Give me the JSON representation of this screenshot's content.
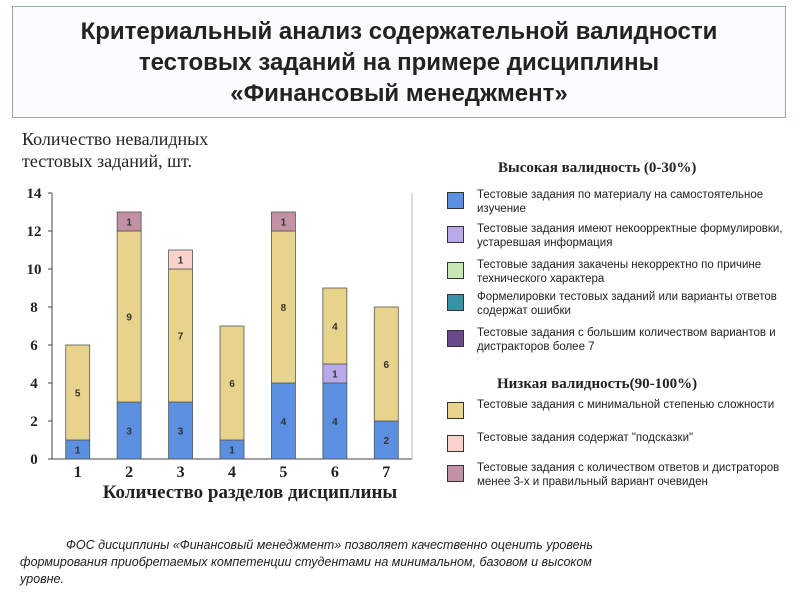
{
  "title": {
    "line1": "Критериальный анализ содержательной валидности",
    "line2": "тестовых заданий на примере дисциплины",
    "line3": "«Финансовый менеджмент»"
  },
  "legend": {
    "high_header": "Высокая валидность (0-30%)",
    "low_header": "Низкая валидность(90-100%)",
    "items": [
      {
        "text": "Тестовые задания по материалу на самостоятельное изучение",
        "color": "#5b8fe0"
      },
      {
        "text": "Тестовые задания имеют некоорректные формулировки, устаревшая информация",
        "color": "#b9a8ea"
      },
      {
        "text": "Тестовые задания закачены некорректно по причине технического характера",
        "color": "#c7e8b3"
      },
      {
        "text": "Формелировки тестовых заданий или варианты ответов содержат ошибки",
        "color": "#3a92a8"
      },
      {
        "text": "Тестовые задания с большим количеством вариантов и дистракторов более 7",
        "color": "#6a4a8a"
      },
      {
        "text": "Тестовые задания с минимальной степенью сложности",
        "color": "#e8d38c"
      },
      {
        "text": "Тестовые задания содержат \"подсказки\"",
        "color": "#fad2cc"
      },
      {
        "text": "Тестовые задания с количеством ответов и дистраторов менее 3-х и правильный вариант очевиден",
        "color": "#c291a3"
      }
    ]
  },
  "footer": {
    "line1": "ФОС дисциплины «Финансовый менеджмент» позволяет качественно оценить уровень",
    "line2": "формирования приобретаемых компетенции студентами на минимальном, базовом и высоком",
    "line3": "уровне."
  },
  "chart_data": {
    "type": "bar",
    "stacked": true,
    "ylabel": "Количество невалидных тестовых заданий, шт.",
    "xlabel": "Количество разделов дисциплины",
    "ylim": [
      0,
      14
    ],
    "yticks": [
      0,
      2,
      4,
      6,
      8,
      10,
      12,
      14
    ],
    "categories": [
      "1",
      "2",
      "3",
      "4",
      "5",
      "6",
      "7"
    ],
    "series": [
      {
        "color": "#5b8fe0",
        "values": [
          1,
          3,
          3,
          1,
          4,
          4,
          2
        ]
      },
      {
        "color": "#b9a8ea",
        "values": [
          0,
          0,
          0,
          0,
          0,
          1,
          0
        ]
      },
      {
        "color": "#e8d38c",
        "values": [
          5,
          9,
          7,
          6,
          8,
          4,
          6
        ]
      },
      {
        "color": "#fad2cc",
        "values": [
          0,
          0,
          1,
          0,
          0,
          0,
          0
        ]
      },
      {
        "color": "#c291a3",
        "values": [
          0,
          1,
          0,
          0,
          1,
          0,
          0
        ]
      }
    ],
    "grid": false,
    "legend_position": "right"
  }
}
